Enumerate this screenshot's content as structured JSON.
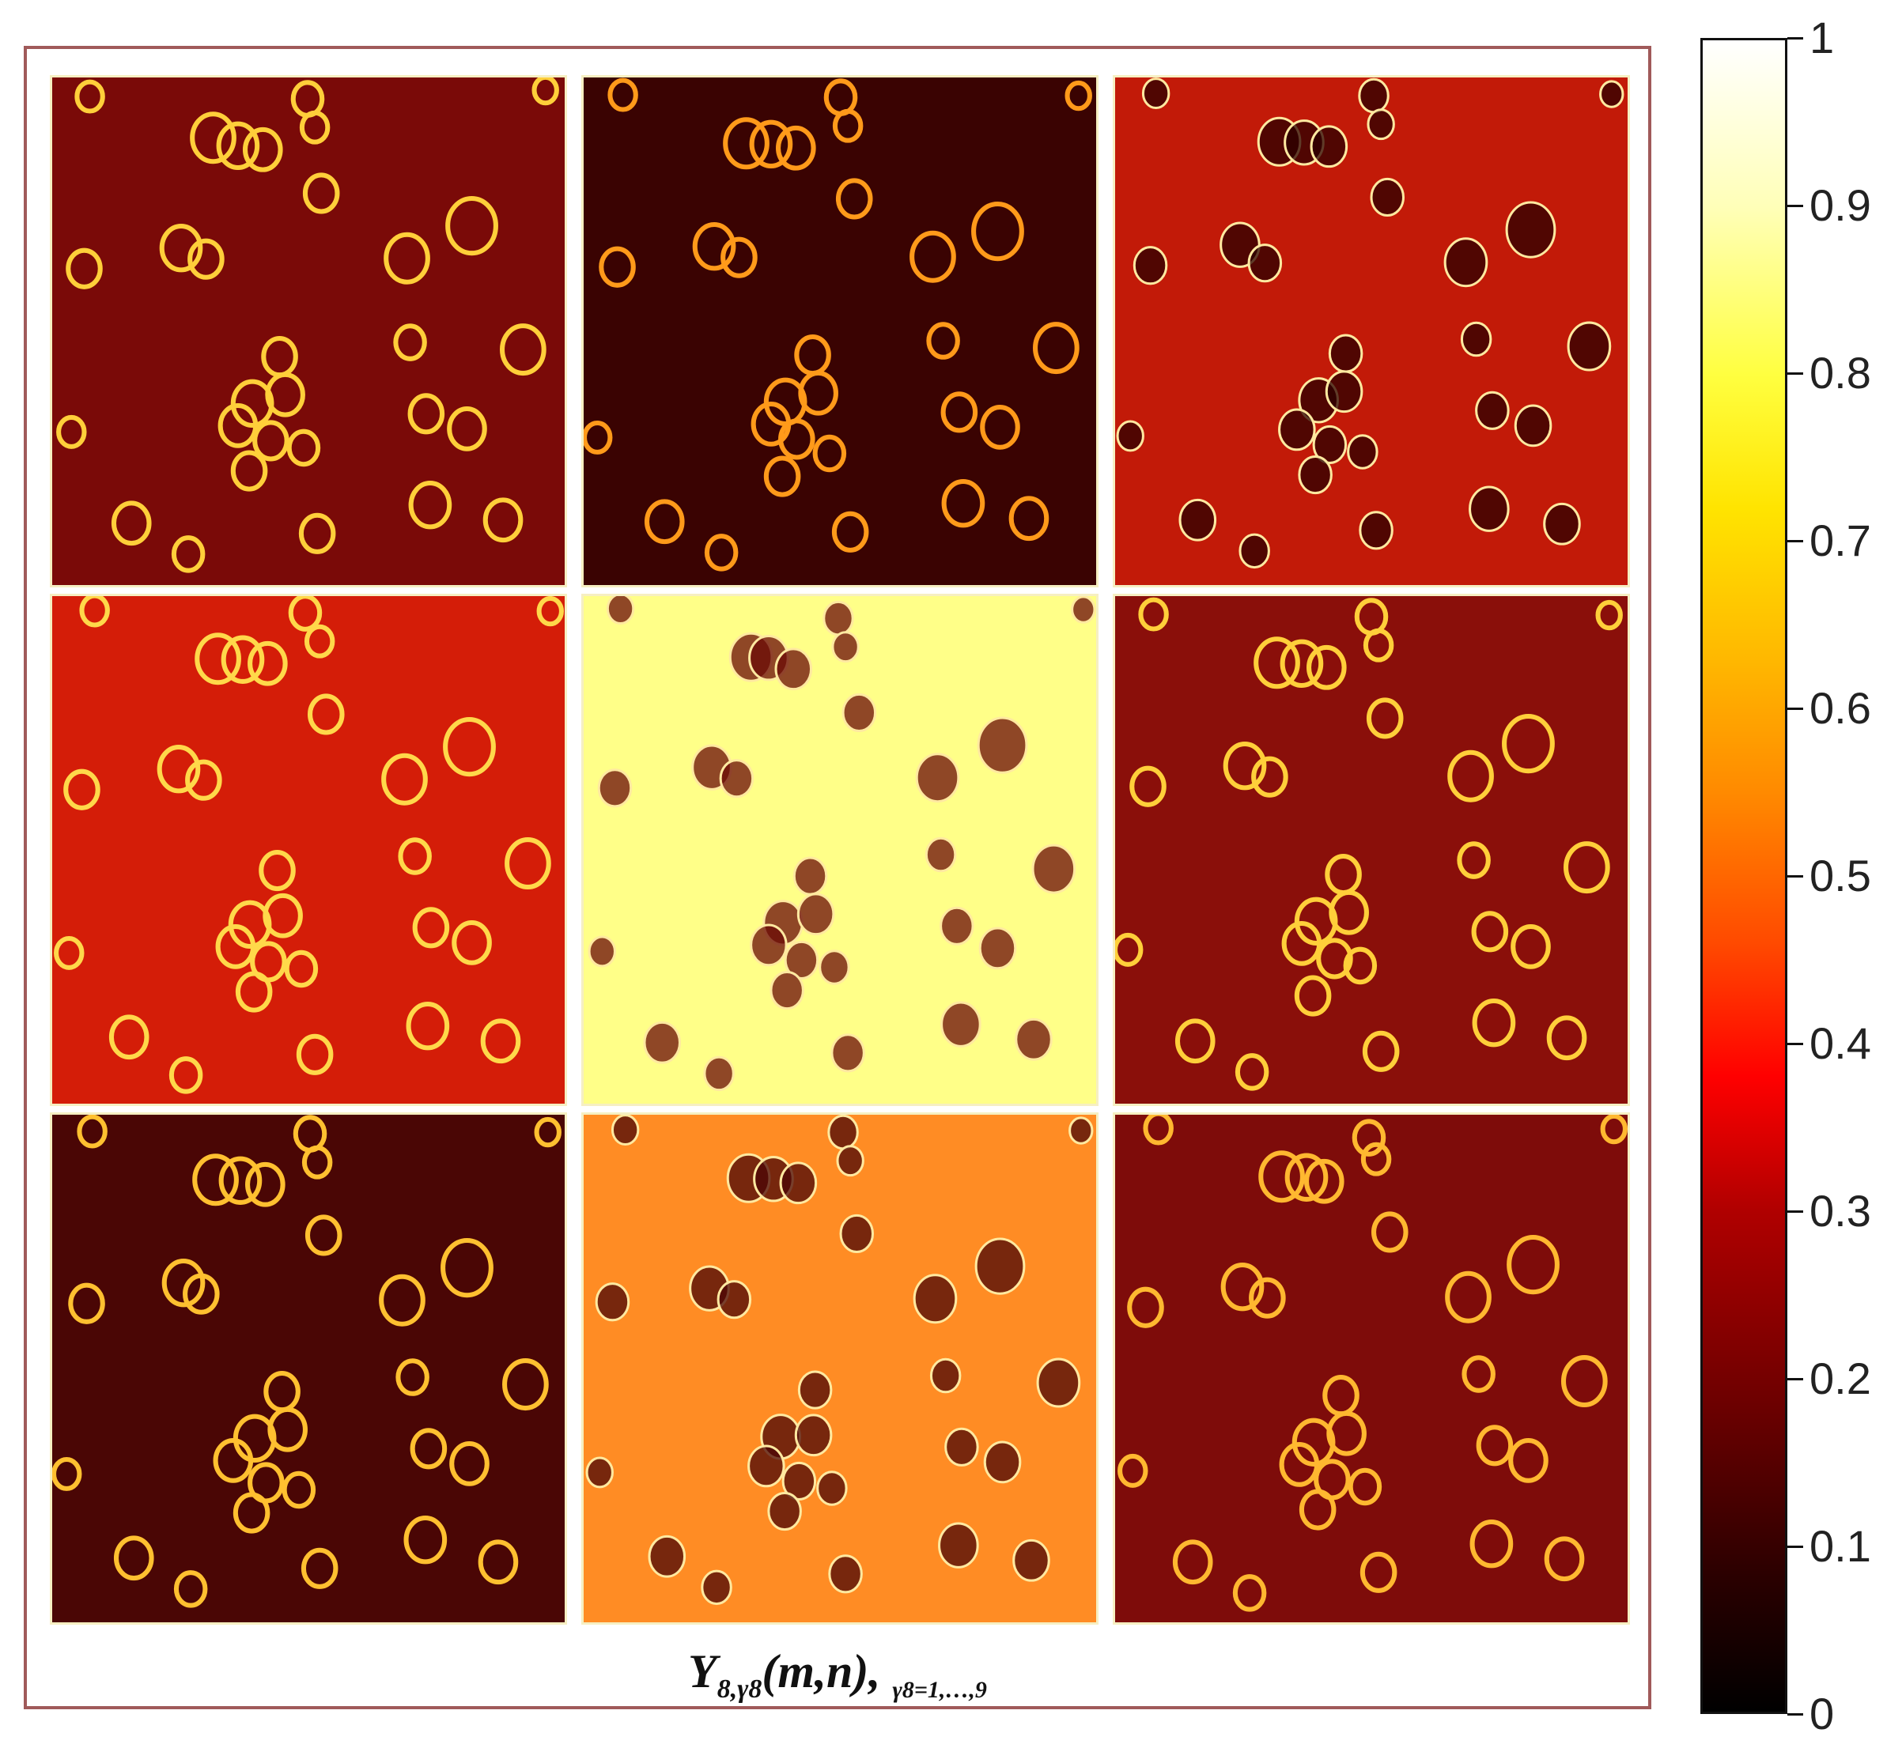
{
  "caption": {
    "main": "Y",
    "sub1": "8,γ8",
    "args": "(m,n),",
    "sub2": "γ8=1,…,9"
  },
  "colorbar": {
    "ticks": [
      "0",
      "0.1",
      "0.2",
      "0.3",
      "0.4",
      "0.5",
      "0.6",
      "0.7",
      "0.8",
      "0.9",
      "1"
    ]
  },
  "panels": [
    {
      "bg": "#7a0a08",
      "cell": "#ffcf3a",
      "dark": false
    },
    {
      "bg": "#3a0302",
      "cell": "#ff9a1a",
      "dark": false
    },
    {
      "bg": "#c21a08",
      "cell": "#2a0000",
      "dark": true
    },
    {
      "bg": "#d41d08",
      "cell": "#ffd84a",
      "dark": false
    },
    {
      "bg": "#ffff88",
      "cell": "#6a0a05",
      "dark": true
    },
    {
      "bg": "#8a0f0a",
      "cell": "#ffcf3a",
      "dark": false
    },
    {
      "bg": "#4a0605",
      "cell": "#ffc030",
      "dark": false
    },
    {
      "bg": "#ff8c24",
      "cell": "#4a0505",
      "dark": true
    },
    {
      "bg": "#7e0c0a",
      "cell": "#ffb830",
      "dark": false
    }
  ]
}
